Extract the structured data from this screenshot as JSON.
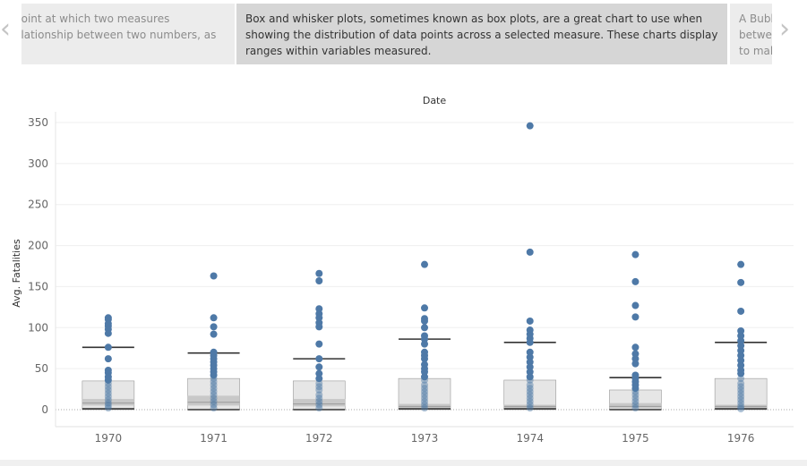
{
  "carousel": {
    "prev_arrow": "‹",
    "next_arrow": "›",
    "prev_card_text": "point at which two measures\nelationship  between two numbers, as",
    "active_card_text": "Box and whisker plots, sometimes known as box plots, are a great chart to use when showing the distribution of data points  across a selected measure. These charts display ranges within variables measured.",
    "next_card_text": "A Bubb\nbetwe\nto mak"
  },
  "colors": {
    "point": "#4e79a7",
    "box_outer": "#e6e6e6",
    "box_inner": "#c8c8c8",
    "whisker": "#333333",
    "grid": "#efefef",
    "axis_text": "#666666"
  },
  "chart_data": {
    "type": "box",
    "title": "Date",
    "xlabel": "",
    "ylabel": "Avg. Fatalities",
    "ylim": [
      -20,
      360
    ],
    "yticks": [
      0,
      50,
      100,
      150,
      200,
      250,
      300,
      350
    ],
    "categories": [
      "1970",
      "1971",
      "1972",
      "1973",
      "1974",
      "1975",
      "1976"
    ],
    "boxes": [
      {
        "q1": 5,
        "median": 8,
        "q3": 13,
        "upper_box": 35,
        "lower_whisker": 1,
        "upper_whisker": 76
      },
      {
        "q1": 5,
        "median": 9,
        "q3": 17,
        "upper_box": 38,
        "lower_whisker": 0,
        "upper_whisker": 69
      },
      {
        "q1": 4,
        "median": 7,
        "q3": 13,
        "upper_box": 35,
        "lower_whisker": 0,
        "upper_whisker": 62
      },
      {
        "q1": 2,
        "median": 4,
        "q3": 7,
        "upper_box": 38,
        "lower_whisker": 1,
        "upper_whisker": 86
      },
      {
        "q1": 2,
        "median": 4,
        "q3": 6,
        "upper_box": 36,
        "lower_whisker": 1,
        "upper_whisker": 82
      },
      {
        "q1": 2,
        "median": 4,
        "q3": 8,
        "upper_box": 24,
        "lower_whisker": 0,
        "upper_whisker": 39
      },
      {
        "q1": 2,
        "median": 4,
        "q3": 6,
        "upper_box": 38,
        "lower_whisker": 1,
        "upper_whisker": 82
      }
    ],
    "points": [
      [
        112,
        110,
        105,
        102,
        98,
        93,
        76,
        62,
        48,
        45,
        40,
        36,
        32,
        28,
        24,
        20,
        16,
        12,
        8,
        5,
        2
      ],
      [
        163,
        112,
        101,
        92,
        70,
        66,
        62,
        58,
        54,
        50,
        46,
        42,
        38,
        34,
        30,
        26,
        22,
        18,
        14,
        10,
        6,
        2
      ],
      [
        166,
        157,
        123,
        117,
        112,
        106,
        101,
        80,
        62,
        52,
        44,
        38,
        32,
        28,
        24,
        18,
        14,
        10,
        6,
        2
      ],
      [
        177,
        124,
        111,
        108,
        100,
        90,
        86,
        80,
        70,
        66,
        62,
        55,
        50,
        46,
        40,
        36,
        30,
        26,
        22,
        18,
        14,
        10,
        6,
        2
      ],
      [
        346,
        192,
        108,
        97,
        92,
        87,
        82,
        70,
        64,
        58,
        52,
        46,
        40,
        36,
        30,
        26,
        22,
        18,
        14,
        10,
        6,
        2
      ],
      [
        189,
        156,
        127,
        113,
        76,
        68,
        62,
        56,
        42,
        38,
        34,
        30,
        26,
        22,
        18,
        14,
        10,
        6,
        2
      ],
      [
        177,
        155,
        120,
        96,
        90,
        84,
        78,
        72,
        66,
        60,
        54,
        48,
        44,
        38,
        32,
        28,
        24,
        20,
        16,
        12,
        8,
        4,
        1
      ]
    ]
  }
}
